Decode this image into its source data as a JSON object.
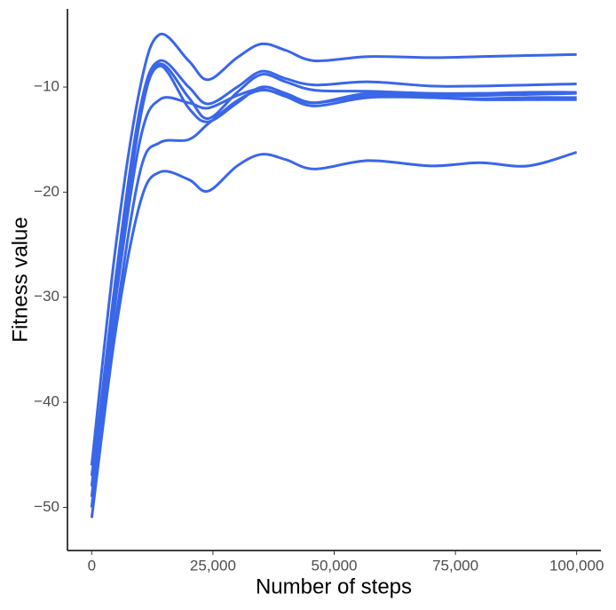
{
  "chart_data": {
    "type": "line",
    "x_label": "Number of steps",
    "y_label": "Fitness value",
    "x": [
      0,
      5000,
      10000,
      14000,
      20000,
      24000,
      30000,
      35000,
      40000,
      46000,
      57000,
      70000,
      80000,
      90000,
      100000
    ],
    "series": [
      {
        "color": "#3a66e8",
        "values": [
          -46,
          -25,
          -10,
          -5,
          -7.5,
          -9.3,
          -7.2,
          -5.9,
          -6.5,
          -7.5,
          -7.1,
          -7.2,
          -7.1,
          -7.0,
          -6.9
        ]
      },
      {
        "color": "#3a66e8",
        "values": [
          -48,
          -28,
          -12,
          -7.5,
          -10,
          -11.6,
          -10,
          -8.5,
          -9.2,
          -9.8,
          -9.5,
          -9.9,
          -9.9,
          -9.8,
          -9.7
        ]
      },
      {
        "color": "#3a66e8",
        "values": [
          -49,
          -29,
          -12.5,
          -7.8,
          -11,
          -13,
          -10.5,
          -8.8,
          -9.5,
          -10.3,
          -10.4,
          -10.6,
          -10.6,
          -10.5,
          -10.5
        ]
      },
      {
        "color": "#3a66e8",
        "values": [
          -50,
          -30,
          -13,
          -8,
          -12,
          -13.3,
          -11.5,
          -10,
          -10.6,
          -11.5,
          -10.8,
          -11,
          -11.1,
          -11,
          -11
        ]
      },
      {
        "color": "#3a66e8",
        "values": [
          -47,
          -30,
          -15,
          -11.2,
          -11.5,
          -12,
          -10.8,
          -10.2,
          -10.9,
          -11.8,
          -11,
          -11,
          -11.2,
          -11.2,
          -11.2
        ]
      },
      {
        "color": "#3a66e8",
        "values": [
          -50,
          -32,
          -18,
          -15.3,
          -15,
          -13.5,
          -11.3,
          -10.3,
          -10.8,
          -11.5,
          -10.6,
          -10.8,
          -10.8,
          -10.7,
          -10.6
        ]
      },
      {
        "color": "#3a66e8",
        "values": [
          -51,
          -33,
          -21,
          -18.1,
          -18.8,
          -19.9,
          -17.5,
          -16.4,
          -16.9,
          -17.8,
          -17.0,
          -17.5,
          -17.2,
          -17.5,
          -16.2
        ]
      }
    ],
    "xlim": [
      -5000,
      105000
    ],
    "xticks": [
      0,
      {
        "value": 25000,
        "label": "25,000"
      },
      {
        "value": 50000,
        "label": "50,000"
      },
      {
        "value": 75000,
        "label": "75,000"
      },
      {
        "value": 100000,
        "label": "100,000"
      }
    ],
    "ylim": [
      -54.1,
      -2.56
    ],
    "yticks": [
      {
        "value": -50,
        "label": "−50"
      },
      {
        "value": -40,
        "label": "−40"
      },
      {
        "value": -30,
        "label": "−30"
      },
      {
        "value": -20,
        "label": "−20"
      },
      {
        "value": -10,
        "label": "−10"
      }
    ],
    "grid": false
  }
}
